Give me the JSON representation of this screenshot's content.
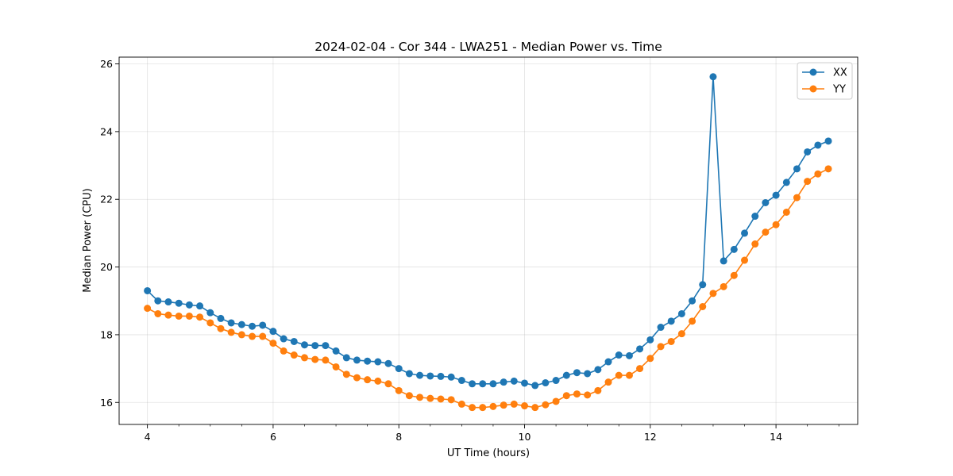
{
  "chart_data": {
    "type": "line",
    "title": "2024-02-04 - Cor 344 - LWA251 - Median Power vs. Time",
    "xlabel": "UT Time (hours)",
    "ylabel": "Median Power (CPU)",
    "xlim": [
      3.55,
      15.3
    ],
    "ylim": [
      15.35,
      26.2
    ],
    "xticks": [
      4,
      6,
      8,
      10,
      12,
      14
    ],
    "xtick_labels": [
      "4",
      "6",
      "8",
      "10",
      "12",
      "14"
    ],
    "yticks": [
      16,
      18,
      20,
      22,
      24,
      26
    ],
    "ytick_labels": [
      "16",
      "18",
      "20",
      "22",
      "24",
      "26"
    ],
    "grid": true,
    "legend_position": "top-right",
    "x": [
      4.0,
      4.167,
      4.333,
      4.5,
      4.667,
      4.833,
      5.0,
      5.167,
      5.333,
      5.5,
      5.667,
      5.833,
      6.0,
      6.167,
      6.333,
      6.5,
      6.667,
      6.833,
      7.0,
      7.167,
      7.333,
      7.5,
      7.667,
      7.833,
      8.0,
      8.167,
      8.333,
      8.5,
      8.667,
      8.833,
      9.0,
      9.167,
      9.333,
      9.5,
      9.667,
      9.833,
      10.0,
      10.167,
      10.333,
      10.5,
      10.667,
      10.833,
      11.0,
      11.167,
      11.333,
      11.5,
      11.667,
      11.833,
      12.0,
      12.167,
      12.333,
      12.5,
      12.667,
      12.833,
      13.0,
      13.167,
      13.333,
      13.5,
      13.667,
      13.833,
      14.0,
      14.167,
      14.333,
      14.5,
      14.667,
      14.833
    ],
    "series": [
      {
        "name": "XX",
        "color": "#1f77b4",
        "values": [
          19.3,
          19.0,
          18.97,
          18.93,
          18.88,
          18.85,
          18.65,
          18.48,
          18.35,
          18.3,
          18.25,
          18.28,
          18.1,
          17.88,
          17.8,
          17.7,
          17.68,
          17.68,
          17.52,
          17.32,
          17.25,
          17.22,
          17.2,
          17.15,
          17.0,
          16.85,
          16.8,
          16.78,
          16.77,
          16.75,
          16.65,
          16.55,
          16.55,
          16.55,
          16.6,
          16.63,
          16.57,
          16.5,
          16.58,
          16.65,
          16.8,
          16.88,
          16.85,
          16.97,
          17.2,
          17.4,
          17.38,
          17.58,
          17.85,
          18.22,
          18.4,
          18.62,
          19.0,
          19.48,
          25.62,
          20.18,
          20.52,
          21.0,
          21.5,
          21.9,
          22.12,
          22.5,
          22.9,
          23.4,
          23.6,
          23.72
        ]
      },
      {
        "name": "YY",
        "color": "#ff7f0e",
        "values": [
          18.78,
          18.62,
          18.58,
          18.55,
          18.55,
          18.52,
          18.35,
          18.18,
          18.07,
          18.0,
          17.95,
          17.95,
          17.75,
          17.52,
          17.4,
          17.32,
          17.27,
          17.25,
          17.05,
          16.83,
          16.73,
          16.67,
          16.63,
          16.55,
          16.35,
          16.2,
          16.15,
          16.12,
          16.1,
          16.08,
          15.95,
          15.85,
          15.85,
          15.88,
          15.92,
          15.95,
          15.9,
          15.85,
          15.93,
          16.03,
          16.2,
          16.25,
          16.22,
          16.35,
          16.6,
          16.8,
          16.8,
          17.0,
          17.3,
          17.65,
          17.8,
          18.03,
          18.4,
          18.83,
          19.22,
          19.42,
          19.75,
          20.2,
          20.68,
          21.03,
          21.25,
          21.62,
          22.05,
          22.53,
          22.75,
          22.9
        ]
      }
    ]
  }
}
